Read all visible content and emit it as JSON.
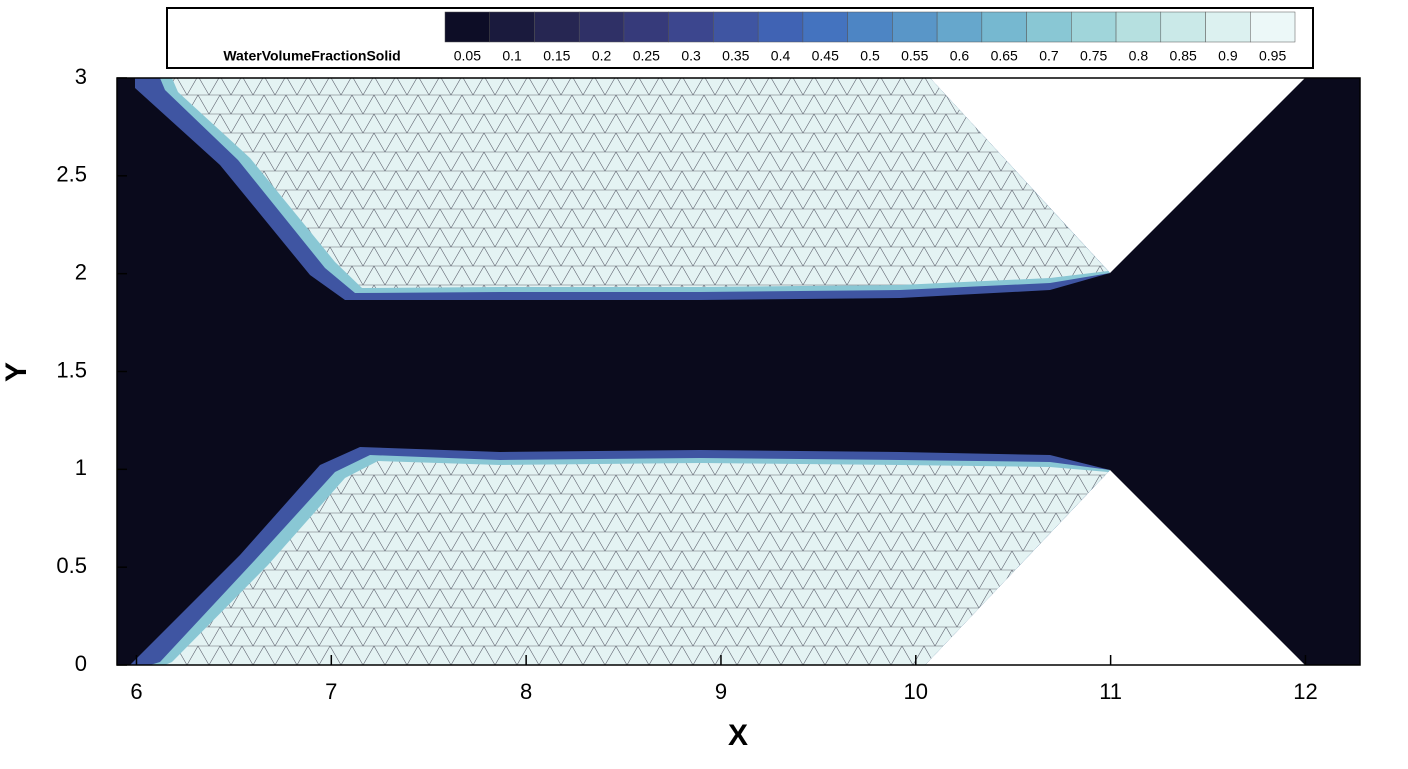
{
  "chart_data": {
    "type": "contour",
    "x_label": "X",
    "y_label": "Y",
    "xlim": [
      5.9,
      12.28
    ],
    "ylim": [
      0,
      3
    ],
    "xticks": [
      6,
      7,
      8,
      9,
      10,
      11,
      12
    ],
    "yticks": [
      0,
      0.5,
      1,
      1.5,
      2,
      2.5,
      3
    ],
    "grid": false,
    "colorbar": {
      "title": "WaterVolumeFractionSolid",
      "levels": [
        0.05,
        0.1,
        0.15,
        0.2,
        0.25,
        0.3,
        0.35,
        0.4,
        0.45,
        0.5,
        0.55,
        0.6,
        0.65,
        0.7,
        0.75,
        0.8,
        0.85,
        0.9,
        0.95
      ],
      "colors": [
        "#0d0d26",
        "#1a1a3d",
        "#262652",
        "#2f3066",
        "#363a7a",
        "#3c468e",
        "#3f55a2",
        "#4063b4",
        "#4473bf",
        "#4d85c4",
        "#5996c8",
        "#66a7cc",
        "#76b8d0",
        "#89c7d4",
        "#a0d5da",
        "#b6e0e0",
        "#cae9e8",
        "#dcf1f0",
        "#ecf8f8"
      ]
    }
  }
}
